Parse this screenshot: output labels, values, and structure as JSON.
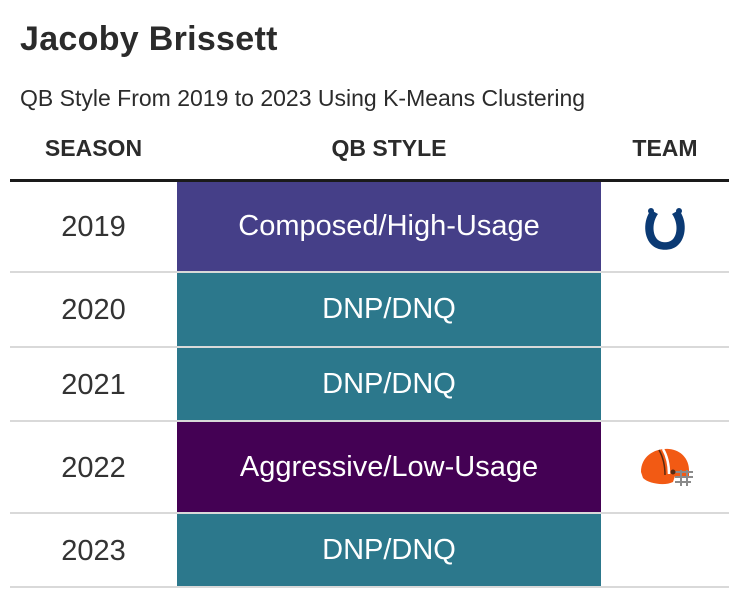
{
  "header": {
    "title": "Jacoby Brissett",
    "subtitle": "QB Style From 2019 to 2023 Using K-Means Clustering"
  },
  "columns": {
    "season": "SEASON",
    "qb_style": "QB STYLE",
    "team": "TEAM"
  },
  "rows": [
    {
      "season": "2019",
      "qb_style": "Composed/High-Usage",
      "style_color": "#453F88",
      "team_logo": "colts-horseshoe-icon"
    },
    {
      "season": "2020",
      "qb_style": "DNP/DNQ",
      "style_color": "#2C788C",
      "team_logo": ""
    },
    {
      "season": "2021",
      "qb_style": "DNP/DNQ",
      "style_color": "#2C788C",
      "team_logo": ""
    },
    {
      "season": "2022",
      "qb_style": "Aggressive/Low-Usage",
      "style_color": "#440154",
      "team_logo": "browns-helmet-icon"
    },
    {
      "season": "2023",
      "qb_style": "DNP/DNQ",
      "style_color": "#2C788C",
      "team_logo": ""
    }
  ]
}
